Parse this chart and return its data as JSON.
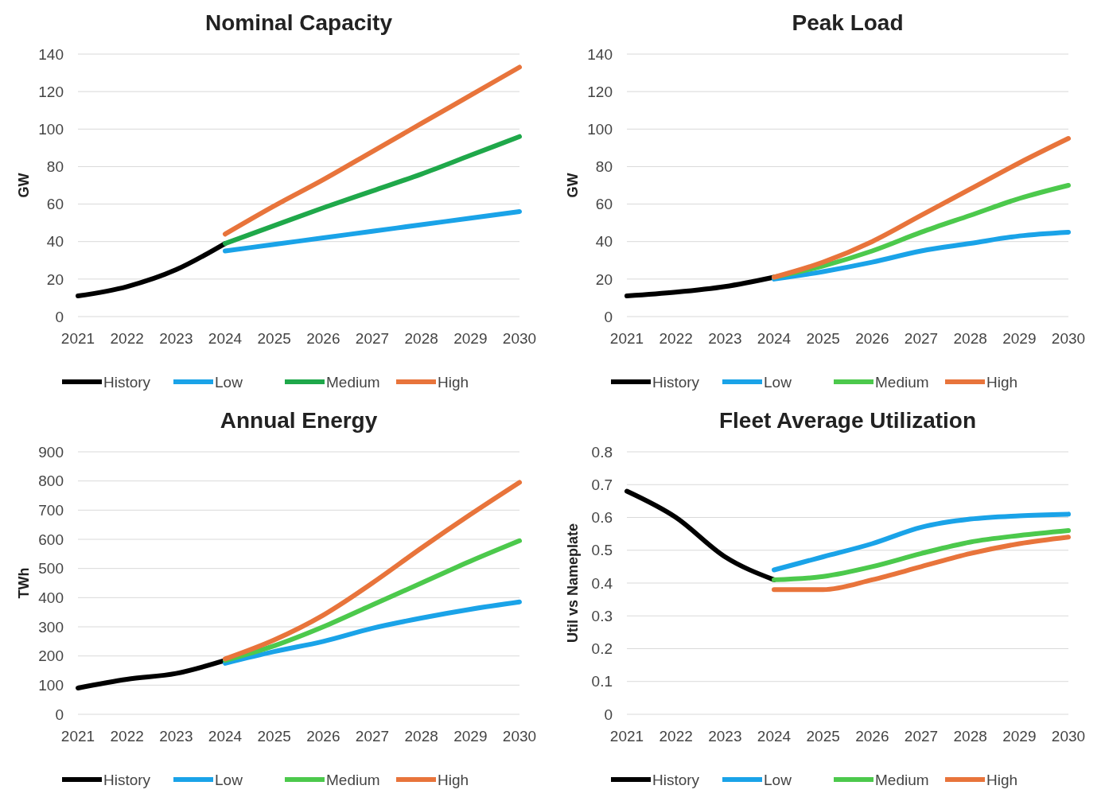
{
  "chart_data": [
    {
      "type": "line",
      "title": "Nominal Capacity",
      "ylabel": "GW",
      "categories": [
        "2021",
        "2022",
        "2023",
        "2024",
        "2025",
        "2026",
        "2027",
        "2028",
        "2029",
        "2030"
      ],
      "ylim": [
        0,
        140
      ],
      "yticks": [
        0,
        20,
        40,
        60,
        80,
        100,
        120,
        140
      ],
      "grid": "y",
      "legend": "bottom",
      "marker": "none",
      "line_style": "solid",
      "series": [
        {
          "name": "History",
          "color": "#000000",
          "values": [
            11,
            16,
            25,
            39,
            null,
            null,
            null,
            null,
            null,
            null
          ]
        },
        {
          "name": "Low",
          "color": "#1aa3e8",
          "values": [
            null,
            null,
            null,
            35,
            38.5,
            42,
            45.5,
            49,
            52.5,
            56
          ]
        },
        {
          "name": "Medium",
          "color": "#1fa84a",
          "values": [
            null,
            null,
            null,
            39,
            48.5,
            58,
            67,
            76,
            86,
            96
          ]
        },
        {
          "name": "High",
          "color": "#e8743b",
          "values": [
            null,
            null,
            null,
            44,
            59,
            73,
            88,
            103,
            118,
            133
          ]
        }
      ]
    },
    {
      "type": "line",
      "title": "Peak Load",
      "ylabel": "GW",
      "categories": [
        "2021",
        "2022",
        "2023",
        "2024",
        "2025",
        "2026",
        "2027",
        "2028",
        "2029",
        "2030"
      ],
      "ylim": [
        0,
        140
      ],
      "yticks": [
        0,
        20,
        40,
        60,
        80,
        100,
        120,
        140
      ],
      "grid": "y",
      "legend": "bottom",
      "marker": "none",
      "line_style": "solid",
      "series": [
        {
          "name": "History",
          "color": "#000000",
          "values": [
            11,
            13,
            16,
            21,
            null,
            null,
            null,
            null,
            null,
            null
          ]
        },
        {
          "name": "Low",
          "color": "#1aa3e8",
          "values": [
            null,
            null,
            null,
            20,
            24,
            29,
            35,
            39,
            43,
            45
          ]
        },
        {
          "name": "Medium",
          "color": "#4cc94c",
          "values": [
            null,
            null,
            null,
            21,
            27,
            35,
            45,
            54,
            63,
            70
          ]
        },
        {
          "name": "High",
          "color": "#e8743b",
          "values": [
            null,
            null,
            null,
            21,
            29,
            40,
            54,
            68,
            82,
            95
          ]
        }
      ]
    },
    {
      "type": "line",
      "title": "Annual Energy",
      "ylabel": "TWh",
      "categories": [
        "2021",
        "2022",
        "2023",
        "2024",
        "2025",
        "2026",
        "2027",
        "2028",
        "2029",
        "2030"
      ],
      "ylim": [
        0,
        900
      ],
      "yticks": [
        0,
        100,
        200,
        300,
        400,
        500,
        600,
        700,
        800,
        900
      ],
      "grid": "y",
      "legend": "bottom",
      "marker": "none",
      "line_style": "solid",
      "series": [
        {
          "name": "History",
          "color": "#000000",
          "values": [
            90,
            120,
            140,
            185,
            null,
            null,
            null,
            null,
            null,
            null
          ]
        },
        {
          "name": "Low",
          "color": "#1aa3e8",
          "values": [
            null,
            null,
            null,
            175,
            215,
            250,
            295,
            330,
            360,
            385
          ]
        },
        {
          "name": "Medium",
          "color": "#4cc94c",
          "values": [
            null,
            null,
            null,
            185,
            235,
            300,
            375,
            450,
            525,
            595
          ]
        },
        {
          "name": "High",
          "color": "#e8743b",
          "values": [
            null,
            null,
            null,
            190,
            255,
            340,
            450,
            570,
            685,
            795
          ]
        }
      ]
    },
    {
      "type": "line",
      "title": "Fleet Average Utilization",
      "ylabel": "Util vs Nameplate",
      "categories": [
        "2021",
        "2022",
        "2023",
        "2024",
        "2025",
        "2026",
        "2027",
        "2028",
        "2029",
        "2030"
      ],
      "ylim": [
        0,
        0.8
      ],
      "yticks": [
        0,
        0.1,
        0.2,
        0.3,
        0.4,
        0.5,
        0.6,
        0.7,
        0.8
      ],
      "grid": "y",
      "legend": "bottom",
      "marker": "none",
      "line_style": "solid",
      "series": [
        {
          "name": "History",
          "color": "#000000",
          "values": [
            0.68,
            0.6,
            0.48,
            0.41,
            null,
            null,
            null,
            null,
            null,
            null
          ]
        },
        {
          "name": "Low",
          "color": "#1aa3e8",
          "values": [
            null,
            null,
            null,
            0.44,
            0.48,
            0.52,
            0.57,
            0.595,
            0.605,
            0.61
          ]
        },
        {
          "name": "Medium",
          "color": "#4cc94c",
          "values": [
            null,
            null,
            null,
            0.41,
            0.42,
            0.45,
            0.49,
            0.525,
            0.545,
            0.56
          ]
        },
        {
          "name": "High",
          "color": "#e8743b",
          "values": [
            null,
            null,
            null,
            0.38,
            0.38,
            0.41,
            0.45,
            0.49,
            0.52,
            0.54
          ]
        }
      ]
    }
  ]
}
